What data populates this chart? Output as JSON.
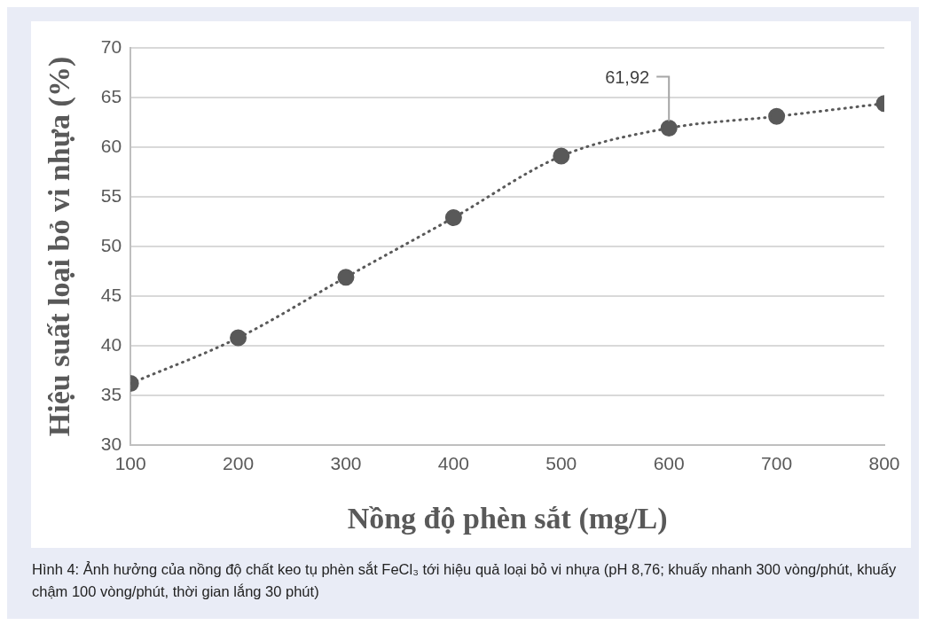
{
  "chart_data": {
    "type": "line",
    "xlabel": "Nồng độ phèn sắt (mg/L)",
    "ylabel": "Hiệu suất loại bỏ vi nhựa (%)",
    "x": [
      100,
      200,
      300,
      400,
      500,
      600,
      700,
      800
    ],
    "series": [
      {
        "color": "#595959",
        "values": [
          36.2,
          40.8,
          46.9,
          52.9,
          59.1,
          61.92,
          63.1,
          64.4
        ],
        "value_labels": [
          null,
          null,
          null,
          null,
          null,
          "61,92",
          null,
          null
        ]
      }
    ],
    "xlim": [
      100,
      800
    ],
    "xticks": [
      100,
      200,
      300,
      400,
      500,
      600,
      700,
      800
    ],
    "ylim": [
      30,
      70
    ],
    "yticks": [
      30,
      35,
      40,
      45,
      50,
      55,
      60,
      65,
      70
    ],
    "grid": "y",
    "marker": "circle",
    "line_style": "dotted",
    "legend": false,
    "annotations": [
      "Hình 4: Ảnh hưởng của nồng độ chất keo tụ phèn sắt FeCl₃ tới hiệu quả loại bỏ vi nhựa (pH 8,76; khuấy nhanh 300 vòng/phút, khuấy chậm 100 vòng/phút, thời gian lắng 30 phút)"
    ]
  }
}
